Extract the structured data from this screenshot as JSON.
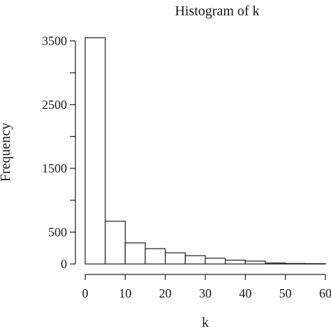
{
  "chart_data": {
    "type": "bar",
    "title": "Histogram of k",
    "xlabel": "k",
    "ylabel": "Frequency",
    "bin_edges": [
      0,
      5,
      10,
      15,
      20,
      25,
      30,
      35,
      40,
      45,
      50,
      55,
      60
    ],
    "values": [
      3550,
      670,
      330,
      240,
      175,
      130,
      90,
      60,
      45,
      15,
      8,
      5
    ],
    "xlim": [
      0,
      60
    ],
    "ylim": [
      0,
      3550
    ],
    "x_ticks": [
      0,
      10,
      20,
      30,
      40,
      50,
      60
    ],
    "y_ticks": [
      0,
      500,
      1000,
      1500,
      2000,
      2500,
      3000,
      3500
    ],
    "y_tick_labels_shown": [
      "0",
      "500",
      "1500",
      "2500",
      "3500"
    ],
    "grid": false,
    "legend": "none"
  }
}
